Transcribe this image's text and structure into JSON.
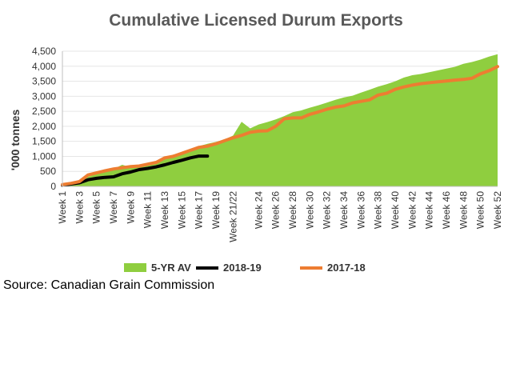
{
  "chart_data": {
    "type": "area",
    "title": "Cumulative Licensed Durum Exports",
    "ylabel": "'000 tonnes",
    "xlabel": "",
    "ylim": [
      0,
      4500
    ],
    "yticks": [
      0,
      500,
      1000,
      1500,
      2000,
      2500,
      3000,
      3500,
      4000,
      4500
    ],
    "ytick_labels": [
      "0",
      "500",
      "1,000",
      "1,500",
      "2,000",
      "2,500",
      "3,000",
      "3,500",
      "4,000",
      "4,500"
    ],
    "x_tick_labels": [
      "Week 1",
      "Week 3",
      "Week 5",
      "Week 7",
      "Week 9",
      "Week 11",
      "Week 13",
      "Week 15",
      "Week 17",
      "Week 19",
      "Week 21/22",
      "Week 24",
      "Week 26",
      "Week 28",
      "Week 30",
      "Week 32",
      "Week 34",
      "Week 36",
      "Week 38",
      "Week 40",
      "Week 42",
      "Week 44",
      "Week 46",
      "Week 48",
      "Week 50",
      "Week 52"
    ],
    "legend_position": "bottom",
    "series": [
      {
        "name": "5-YR AV",
        "type": "area",
        "color": "#8fce3f",
        "values": [
          50,
          90,
          150,
          320,
          420,
          500,
          580,
          720,
          640,
          690,
          760,
          840,
          960,
          1060,
          1140,
          1240,
          1340,
          1420,
          1480,
          1560,
          1690,
          2150,
          1930,
          2060,
          2140,
          2230,
          2340,
          2470,
          2530,
          2620,
          2700,
          2790,
          2880,
          2960,
          3020,
          3120,
          3220,
          3320,
          3400,
          3500,
          3620,
          3700,
          3740,
          3800,
          3860,
          3920,
          3980,
          4080,
          4140,
          4220,
          4320,
          4400
        ]
      },
      {
        "name": "2018-19",
        "type": "line",
        "color": "#000000",
        "values": [
          40,
          80,
          120,
          220,
          270,
          300,
          320,
          420,
          480,
          560,
          600,
          650,
          720,
          800,
          870,
          950,
          1010,
          1010
        ]
      },
      {
        "name": "2017-18",
        "type": "line",
        "color": "#ed7d31",
        "values": [
          60,
          100,
          160,
          380,
          450,
          520,
          580,
          620,
          660,
          680,
          740,
          800,
          950,
          1000,
          1100,
          1200,
          1300,
          1340,
          1420,
          1520,
          1620,
          1700,
          1800,
          1840,
          1850,
          2000,
          2250,
          2280,
          2280,
          2400,
          2480,
          2570,
          2640,
          2680,
          2780,
          2830,
          2880,
          3040,
          3100,
          3230,
          3310,
          3370,
          3420,
          3450,
          3480,
          3510,
          3540,
          3560,
          3600,
          3750,
          3850,
          3990
        ]
      }
    ]
  },
  "source": "Source: Canadian Grain Commission"
}
